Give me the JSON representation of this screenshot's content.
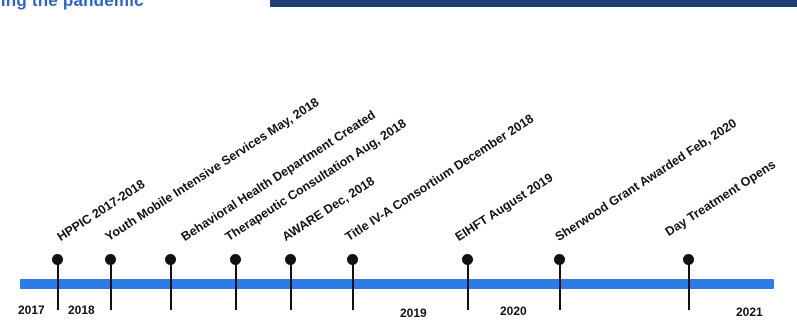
{
  "header": {
    "title": "ring the pandemic"
  },
  "timeline": {
    "events": [
      {
        "label": "HPPIC 2017-2018"
      },
      {
        "label": "Youth Mobile Intensive Services May, 2018"
      },
      {
        "label": "Behavioral Health Department Created"
      },
      {
        "label": "Therapeutic Consultation Aug, 2018"
      },
      {
        "label": "AWARE Dec, 2018"
      },
      {
        "label": "Title IV-A Consortium December 2018"
      },
      {
        "label": "EIHFT August 2019"
      },
      {
        "label": "Sherwood Grant Awarded Feb, 2020"
      },
      {
        "label": "Day Treatment Opens"
      }
    ],
    "years": [
      {
        "label": "2017"
      },
      {
        "label": "2018"
      },
      {
        "label": "2019"
      },
      {
        "label": "2020"
      },
      {
        "label": "2021"
      }
    ]
  }
}
